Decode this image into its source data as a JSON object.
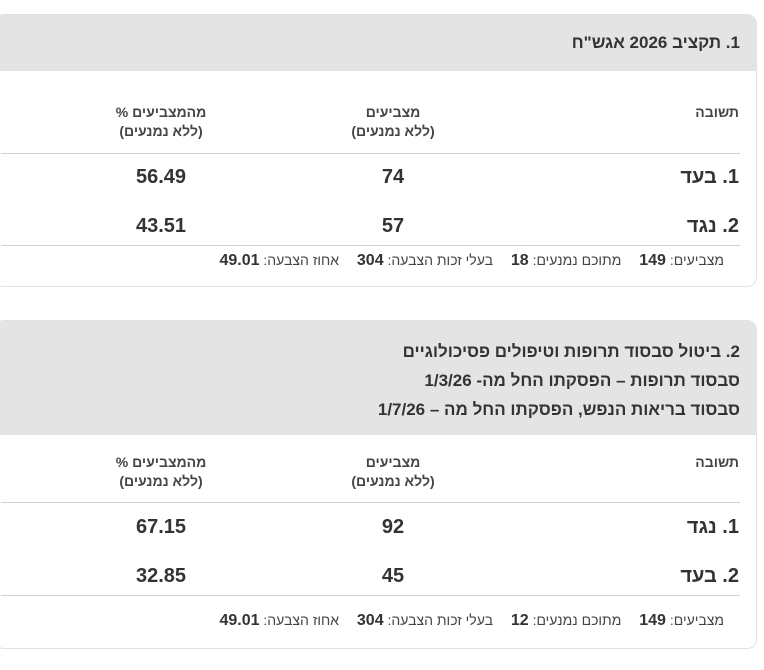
{
  "poll1": {
    "title": "1. תקציב 2026 אגש\"ח",
    "headers": {
      "response": "תשובה",
      "voters_line1": "מצביעים",
      "voters_line2": "(ללא נמנעים)",
      "pct_line1": "% מהמצביעים",
      "pct_line2": "(ללא נמנעים)"
    },
    "rows": [
      {
        "answer": "1. בעד",
        "voters": "74",
        "pct": "56.49"
      },
      {
        "answer": "2. נגד",
        "voters": "57",
        "pct": "43.51"
      }
    ],
    "footer": {
      "voters_label": "מצביעים:",
      "voters_value": "149",
      "abstain_label": "מתוכם נמנעים:",
      "abstain_value": "18",
      "eligible_label": "בעלי זכות הצבעה:",
      "eligible_value": "304",
      "turnout_label": "אחוז הצבעה:",
      "turnout_value": "49.01"
    }
  },
  "poll2": {
    "title_line1": "2. ביטול סבסוד תרופות וטיפולים פסיכולוגיים",
    "title_line2": "סבסוד תרופות – הפסקתו החל מה- 1/3/26",
    "title_line3": "סבסוד בריאות הנפש, הפסקתו החל מה – 1/7/26",
    "headers": {
      "response": "תשובה",
      "voters_line1": "מצביעים",
      "voters_line2": "(ללא נמנעים)",
      "pct_line1": "% מהמצביעים",
      "pct_line2": "(ללא נמנעים)"
    },
    "rows": [
      {
        "answer": "1. נגד",
        "voters": "92",
        "pct": "67.15"
      },
      {
        "answer": "2. בעד",
        "voters": "45",
        "pct": "32.85"
      }
    ],
    "footer": {
      "voters_label": "מצביעים:",
      "voters_value": "149",
      "abstain_label": "מתוכם נמנעים:",
      "abstain_value": "12",
      "eligible_label": "בעלי זכות הצבעה:",
      "eligible_value": "304",
      "turnout_label": "אחוז הצבעה:",
      "turnout_value": "49.01"
    }
  }
}
